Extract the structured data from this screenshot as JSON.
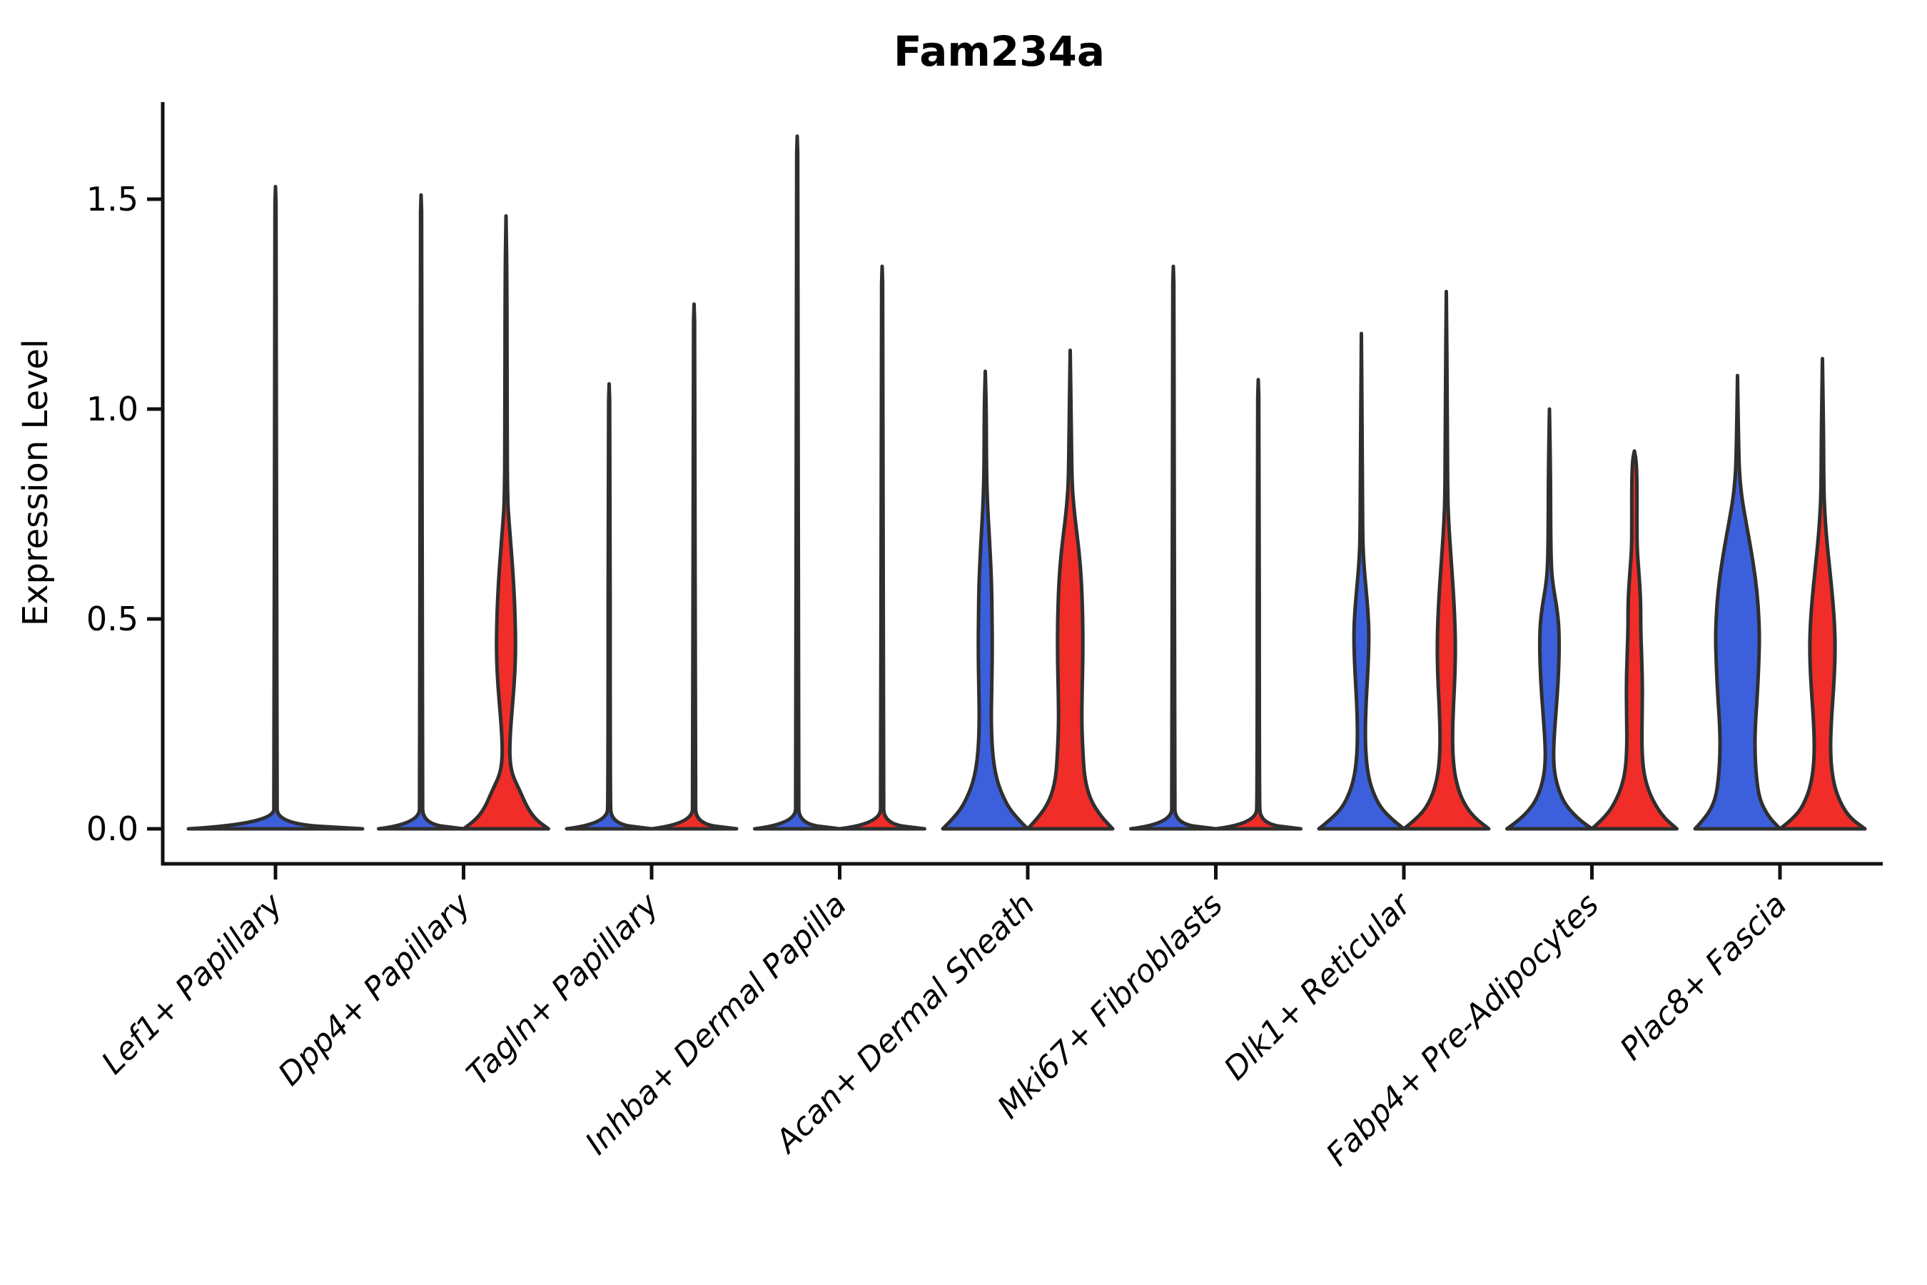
{
  "title": "Fam234a",
  "y_axis": {
    "label": "Expression Level",
    "tick_labels": [
      "0.0",
      "0.5",
      "1.0",
      "1.5"
    ],
    "tick_values": [
      0.0,
      0.5,
      1.0,
      1.5
    ]
  },
  "x_axis": {
    "categories": [
      "Lef1+ Papillary",
      "Dpp4+ Papillary",
      "Tagln+ Papillary",
      "Inhba+ Dermal Papilla",
      "Acan+ Dermal Sheath",
      "Mki67+ Fibroblasts",
      "Dlk1+ Reticular",
      "Fabp4+ Pre-Adipocytes",
      "Plac8+ Fascia"
    ]
  },
  "colors": {
    "blue_fill": "#3C5FDC",
    "red_fill": "#F02D28",
    "violin_outline": "#2F2F2F",
    "axis": "#111111",
    "background": "#FFFFFF"
  },
  "chart_data": {
    "type": "violin",
    "title": "Fam234a",
    "xlabel": "",
    "ylabel": "Expression Level",
    "ylim": [
      0,
      1.73
    ],
    "yticks": [
      0.0,
      0.5,
      1.0,
      1.5
    ],
    "grid": false,
    "legend": "none",
    "categories": [
      "Lef1+ Papillary",
      "Dpp4+ Papillary",
      "Tagln+ Papillary",
      "Inhba+ Dermal Papilla",
      "Acan+ Dermal Sheath",
      "Mki67+ Fibroblasts",
      "Dlk1+ Reticular",
      "Fabp4+ Pre-Adipocytes",
      "Plac8+ Fascia"
    ],
    "series": [
      {
        "name": "blue",
        "color": "#3C5FDC",
        "max_expression": [
          1.53,
          1.51,
          1.06,
          1.65,
          1.09,
          1.34,
          1.18,
          1.0,
          1.08
        ]
      },
      {
        "name": "red",
        "color": "#F02D28",
        "max_expression": [
          null,
          1.46,
          1.25,
          1.34,
          1.14,
          1.07,
          1.28,
          0.9,
          1.12
        ]
      }
    ],
    "violins": [
      {
        "category_index": 0,
        "category": "Lef1+ Papillary",
        "side": "single",
        "color": "blue",
        "peak": 1.53,
        "profile": [
          [
            0,
            1.0
          ],
          [
            0.012,
            0.025
          ],
          [
            0.08,
            0.012
          ],
          [
            1.45,
            0.011
          ],
          [
            1.53,
            0
          ]
        ]
      },
      {
        "category_index": 1,
        "category": "Dpp4+ Papillary",
        "side": "left",
        "color": "blue",
        "peak": 1.51,
        "profile": [
          [
            0,
            1.0
          ],
          [
            0.012,
            0.05
          ],
          [
            0.08,
            0.024
          ],
          [
            1.43,
            0.022
          ],
          [
            1.51,
            0
          ]
        ]
      },
      {
        "category_index": 1,
        "category": "Dpp4+ Papillary",
        "side": "right",
        "color": "red",
        "peak": 1.46,
        "profile": [
          [
            0,
            1.0
          ],
          [
            0.02,
            0.72
          ],
          [
            0.05,
            0.5
          ],
          [
            0.09,
            0.33
          ],
          [
            0.13,
            0.14
          ],
          [
            0.17,
            0.085
          ],
          [
            0.22,
            0.095
          ],
          [
            0.28,
            0.14
          ],
          [
            0.34,
            0.19
          ],
          [
            0.4,
            0.22
          ],
          [
            0.45,
            0.225
          ],
          [
            0.52,
            0.21
          ],
          [
            0.6,
            0.17
          ],
          [
            0.67,
            0.12
          ],
          [
            0.73,
            0.07
          ],
          [
            0.79,
            0.035
          ],
          [
            0.95,
            0.024
          ],
          [
            1.3,
            0.022
          ],
          [
            1.46,
            0
          ]
        ]
      },
      {
        "category_index": 2,
        "category": "Tagln+ Papillary",
        "side": "left",
        "color": "blue",
        "peak": 1.06,
        "profile": [
          [
            0,
            1.0
          ],
          [
            0.012,
            0.05
          ],
          [
            0.08,
            0.024
          ],
          [
            0.98,
            0.022
          ],
          [
            1.06,
            0
          ]
        ]
      },
      {
        "category_index": 2,
        "category": "Tagln+ Papillary",
        "side": "right",
        "color": "red",
        "peak": 1.25,
        "profile": [
          [
            0,
            1.0
          ],
          [
            0.012,
            0.05
          ],
          [
            0.08,
            0.024
          ],
          [
            1.17,
            0.022
          ],
          [
            1.25,
            0
          ]
        ]
      },
      {
        "category_index": 3,
        "category": "Inhba+ Dermal Papilla",
        "side": "left",
        "color": "blue",
        "peak": 1.65,
        "profile": [
          [
            0,
            1.0
          ],
          [
            0.012,
            0.05
          ],
          [
            0.08,
            0.024
          ],
          [
            1.57,
            0.022
          ],
          [
            1.65,
            0
          ]
        ]
      },
      {
        "category_index": 3,
        "category": "Inhba+ Dermal Papilla",
        "side": "right",
        "color": "red",
        "peak": 1.34,
        "profile": [
          [
            0,
            1.0
          ],
          [
            0.012,
            0.05
          ],
          [
            0.08,
            0.024
          ],
          [
            1.26,
            0.022
          ],
          [
            1.34,
            0
          ]
        ]
      },
      {
        "category_index": 4,
        "category": "Acan+ Dermal Sheath",
        "side": "left",
        "color": "blue",
        "peak": 1.09,
        "profile": [
          [
            0,
            1.0
          ],
          [
            0.02,
            0.8
          ],
          [
            0.05,
            0.55
          ],
          [
            0.09,
            0.36
          ],
          [
            0.13,
            0.24
          ],
          [
            0.18,
            0.17
          ],
          [
            0.25,
            0.14
          ],
          [
            0.33,
            0.15
          ],
          [
            0.42,
            0.165
          ],
          [
            0.5,
            0.16
          ],
          [
            0.58,
            0.15
          ],
          [
            0.65,
            0.12
          ],
          [
            0.72,
            0.08
          ],
          [
            0.79,
            0.045
          ],
          [
            0.86,
            0.028
          ],
          [
            1.0,
            0.024
          ],
          [
            1.09,
            0
          ]
        ]
      },
      {
        "category_index": 4,
        "category": "Acan+ Dermal Sheath",
        "side": "right",
        "color": "red",
        "peak": 1.14,
        "profile": [
          [
            0,
            1.0
          ],
          [
            0.03,
            0.72
          ],
          [
            0.07,
            0.47
          ],
          [
            0.12,
            0.34
          ],
          [
            0.18,
            0.3
          ],
          [
            0.25,
            0.27
          ],
          [
            0.33,
            0.28
          ],
          [
            0.42,
            0.3
          ],
          [
            0.5,
            0.295
          ],
          [
            0.58,
            0.27
          ],
          [
            0.65,
            0.22
          ],
          [
            0.71,
            0.15
          ],
          [
            0.77,
            0.08
          ],
          [
            0.83,
            0.04
          ],
          [
            0.95,
            0.026
          ],
          [
            1.14,
            0
          ]
        ]
      },
      {
        "category_index": 5,
        "category": "Mki67+ Fibroblasts",
        "side": "left",
        "color": "blue",
        "peak": 1.34,
        "profile": [
          [
            0,
            1.0
          ],
          [
            0.012,
            0.05
          ],
          [
            0.08,
            0.024
          ],
          [
            1.26,
            0.022
          ],
          [
            1.34,
            0
          ]
        ]
      },
      {
        "category_index": 5,
        "category": "Mki67+ Fibroblasts",
        "side": "right",
        "color": "red",
        "peak": 1.07,
        "profile": [
          [
            0,
            1.0
          ],
          [
            0.012,
            0.05
          ],
          [
            0.08,
            0.024
          ],
          [
            0.99,
            0.022
          ],
          [
            1.07,
            0
          ]
        ]
      },
      {
        "category_index": 6,
        "category": "Dlk1+ Reticular",
        "side": "left",
        "color": "blue",
        "peak": 1.18,
        "profile": [
          [
            0,
            1.0
          ],
          [
            0.02,
            0.75
          ],
          [
            0.05,
            0.45
          ],
          [
            0.09,
            0.26
          ],
          [
            0.13,
            0.155
          ],
          [
            0.18,
            0.1
          ],
          [
            0.24,
            0.09
          ],
          [
            0.31,
            0.115
          ],
          [
            0.39,
            0.16
          ],
          [
            0.46,
            0.18
          ],
          [
            0.52,
            0.155
          ],
          [
            0.58,
            0.1
          ],
          [
            0.64,
            0.05
          ],
          [
            0.7,
            0.03
          ],
          [
            0.85,
            0.025
          ],
          [
            1.18,
            0
          ]
        ]
      },
      {
        "category_index": 6,
        "category": "Dlk1+ Reticular",
        "side": "right",
        "color": "red",
        "peak": 1.28,
        "profile": [
          [
            0,
            1.0
          ],
          [
            0.03,
            0.62
          ],
          [
            0.07,
            0.36
          ],
          [
            0.12,
            0.21
          ],
          [
            0.17,
            0.155
          ],
          [
            0.23,
            0.145
          ],
          [
            0.3,
            0.17
          ],
          [
            0.37,
            0.205
          ],
          [
            0.44,
            0.215
          ],
          [
            0.51,
            0.195
          ],
          [
            0.59,
            0.15
          ],
          [
            0.66,
            0.1
          ],
          [
            0.73,
            0.055
          ],
          [
            0.8,
            0.03
          ],
          [
            1.0,
            0.025
          ],
          [
            1.28,
            0
          ]
        ]
      },
      {
        "category_index": 7,
        "category": "Fabp4+ Pre-Adipocytes",
        "side": "left",
        "color": "blue",
        "peak": 1.0,
        "profile": [
          [
            0,
            1.0
          ],
          [
            0.02,
            0.72
          ],
          [
            0.05,
            0.43
          ],
          [
            0.08,
            0.26
          ],
          [
            0.12,
            0.14
          ],
          [
            0.16,
            0.095
          ],
          [
            0.21,
            0.105
          ],
          [
            0.28,
            0.155
          ],
          [
            0.35,
            0.205
          ],
          [
            0.42,
            0.23
          ],
          [
            0.48,
            0.225
          ],
          [
            0.53,
            0.17
          ],
          [
            0.57,
            0.1
          ],
          [
            0.61,
            0.05
          ],
          [
            0.68,
            0.03
          ],
          [
            0.85,
            0.025
          ],
          [
            1.0,
            0
          ]
        ]
      },
      {
        "category_index": 7,
        "category": "Fabp4+ Pre-Adipocytes",
        "side": "right",
        "color": "red",
        "peak": 0.9,
        "profile": [
          [
            0,
            1.0
          ],
          [
            0.03,
            0.66
          ],
          [
            0.07,
            0.42
          ],
          [
            0.11,
            0.27
          ],
          [
            0.15,
            0.2
          ],
          [
            0.2,
            0.175
          ],
          [
            0.26,
            0.18
          ],
          [
            0.33,
            0.19
          ],
          [
            0.4,
            0.175
          ],
          [
            0.47,
            0.15
          ],
          [
            0.53,
            0.15
          ],
          [
            0.58,
            0.13
          ],
          [
            0.63,
            0.09
          ],
          [
            0.67,
            0.065
          ],
          [
            0.72,
            0.06
          ],
          [
            0.78,
            0.062
          ],
          [
            0.84,
            0.058
          ],
          [
            0.88,
            0.04
          ],
          [
            0.9,
            0
          ]
        ]
      },
      {
        "category_index": 8,
        "category": "Plac8+ Fascia",
        "side": "left",
        "color": "blue",
        "peak": 1.08,
        "profile": [
          [
            0,
            1.0
          ],
          [
            0.03,
            0.72
          ],
          [
            0.07,
            0.52
          ],
          [
            0.12,
            0.445
          ],
          [
            0.18,
            0.41
          ],
          [
            0.24,
            0.415
          ],
          [
            0.31,
            0.46
          ],
          [
            0.39,
            0.5
          ],
          [
            0.46,
            0.52
          ],
          [
            0.53,
            0.49
          ],
          [
            0.6,
            0.42
          ],
          [
            0.67,
            0.31
          ],
          [
            0.73,
            0.2
          ],
          [
            0.79,
            0.1
          ],
          [
            0.84,
            0.05
          ],
          [
            0.9,
            0.028
          ],
          [
            1.08,
            0
          ]
        ]
      },
      {
        "category_index": 8,
        "category": "Plac8+ Fascia",
        "side": "right",
        "color": "red",
        "peak": 1.12,
        "profile": [
          [
            0,
            1.0
          ],
          [
            0.03,
            0.6
          ],
          [
            0.08,
            0.34
          ],
          [
            0.13,
            0.225
          ],
          [
            0.19,
            0.185
          ],
          [
            0.26,
            0.21
          ],
          [
            0.33,
            0.26
          ],
          [
            0.41,
            0.3
          ],
          [
            0.48,
            0.29
          ],
          [
            0.55,
            0.24
          ],
          [
            0.62,
            0.17
          ],
          [
            0.69,
            0.1
          ],
          [
            0.75,
            0.055
          ],
          [
            0.81,
            0.032
          ],
          [
            0.95,
            0.025
          ],
          [
            1.12,
            0
          ]
        ]
      }
    ]
  }
}
